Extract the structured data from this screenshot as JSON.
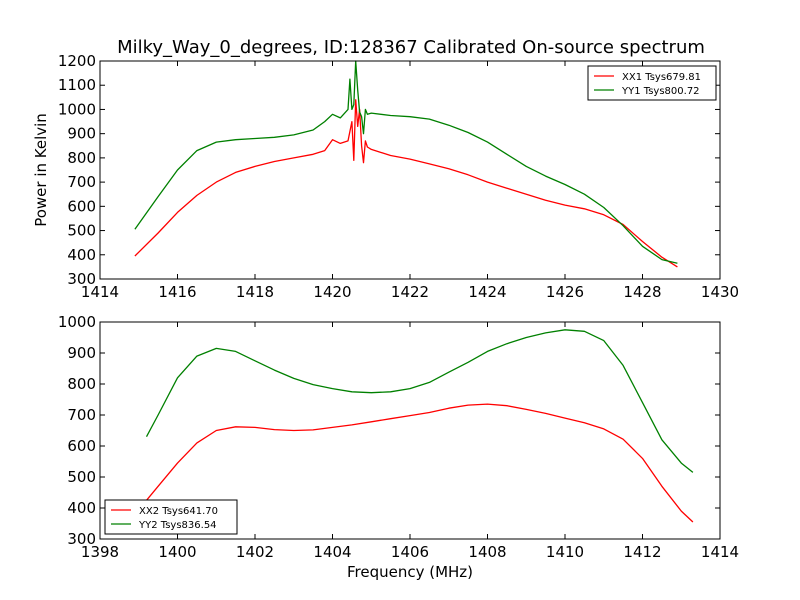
{
  "figure": {
    "title": "Milky_Way_0_degrees, ID:128367 Calibrated On-source spectrum"
  },
  "chart_data": [
    {
      "type": "line",
      "title": "Milky_Way_0_degrees, ID:128367 Calibrated On-source spectrum",
      "xlabel": "",
      "ylabel": "Power in Kelvin",
      "xlim": [
        1414,
        1430
      ],
      "ylim": [
        300,
        1200
      ],
      "xticks": [
        1414,
        1416,
        1418,
        1420,
        1422,
        1424,
        1426,
        1428,
        1430
      ],
      "yticks": [
        300,
        400,
        500,
        600,
        700,
        800,
        900,
        1000,
        1100,
        1200
      ],
      "grid": false,
      "legend": "top-right",
      "series": [
        {
          "name": "XX1 Tsys679.81",
          "color": "#ff0000",
          "x": [
            1414.9,
            1415.5,
            1416.0,
            1416.5,
            1417.0,
            1417.5,
            1418.0,
            1418.5,
            1419.0,
            1419.5,
            1419.8,
            1420.0,
            1420.2,
            1420.4,
            1420.5,
            1420.55,
            1420.6,
            1420.65,
            1420.7,
            1420.75,
            1420.8,
            1420.85,
            1420.9,
            1421.0,
            1421.5,
            1422.0,
            1422.5,
            1423.0,
            1423.5,
            1424.0,
            1424.5,
            1425.0,
            1425.5,
            1426.0,
            1426.5,
            1427.0,
            1427.5,
            1428.0,
            1428.5,
            1428.9
          ],
          "y": [
            395,
            490,
            575,
            645,
            700,
            740,
            765,
            785,
            800,
            815,
            830,
            875,
            860,
            870,
            950,
            790,
            1040,
            930,
            1000,
            850,
            780,
            870,
            845,
            835,
            810,
            795,
            775,
            755,
            730,
            700,
            675,
            650,
            625,
            605,
            590,
            565,
            525,
            455,
            390,
            350
          ]
        },
        {
          "name": "YY1 Tsys800.72",
          "color": "#008000",
          "x": [
            1414.9,
            1415.5,
            1416.0,
            1416.5,
            1417.0,
            1417.5,
            1418.0,
            1418.5,
            1419.0,
            1419.5,
            1419.8,
            1420.0,
            1420.2,
            1420.4,
            1420.45,
            1420.5,
            1420.55,
            1420.6,
            1420.65,
            1420.7,
            1420.75,
            1420.8,
            1420.85,
            1420.9,
            1421.0,
            1421.5,
            1422.0,
            1422.5,
            1423.0,
            1423.5,
            1424.0,
            1424.5,
            1425.0,
            1425.5,
            1426.0,
            1426.5,
            1427.0,
            1427.5,
            1428.0,
            1428.5,
            1428.9
          ],
          "y": [
            505,
            640,
            750,
            830,
            865,
            875,
            880,
            885,
            895,
            915,
            950,
            980,
            965,
            1000,
            1125,
            1000,
            1020,
            1200,
            1080,
            990,
            970,
            900,
            1000,
            980,
            985,
            975,
            970,
            960,
            935,
            905,
            865,
            815,
            765,
            725,
            690,
            650,
            595,
            520,
            435,
            380,
            365
          ]
        }
      ]
    },
    {
      "type": "line",
      "title": "",
      "xlabel": "Frequency (MHz)",
      "ylabel": "",
      "xlim": [
        1398,
        1414
      ],
      "ylim": [
        300,
        1000
      ],
      "xticks": [
        1398,
        1400,
        1402,
        1404,
        1406,
        1408,
        1410,
        1412,
        1414
      ],
      "yticks": [
        300,
        400,
        500,
        600,
        700,
        800,
        900,
        1000
      ],
      "grid": false,
      "legend": "bottom-left",
      "series": [
        {
          "name": "XX2 Tsys641.70",
          "color": "#ff0000",
          "x": [
            1399.2,
            1399.5,
            1400.0,
            1400.5,
            1401.0,
            1401.5,
            1402.0,
            1402.5,
            1403.0,
            1403.5,
            1404.0,
            1404.5,
            1405.0,
            1405.5,
            1406.0,
            1406.5,
            1407.0,
            1407.5,
            1408.0,
            1408.5,
            1409.0,
            1409.5,
            1410.0,
            1410.5,
            1411.0,
            1411.5,
            1412.0,
            1412.5,
            1413.0,
            1413.3
          ],
          "y": [
            425,
            470,
            545,
            610,
            650,
            662,
            660,
            653,
            650,
            652,
            660,
            668,
            678,
            688,
            698,
            708,
            722,
            732,
            735,
            730,
            718,
            705,
            690,
            675,
            655,
            622,
            560,
            470,
            390,
            355
          ]
        },
        {
          "name": "YY2 Tsys836.54",
          "color": "#008000",
          "x": [
            1399.2,
            1399.5,
            1400.0,
            1400.5,
            1401.0,
            1401.5,
            1402.0,
            1402.5,
            1403.0,
            1403.5,
            1404.0,
            1404.5,
            1405.0,
            1405.5,
            1406.0,
            1406.5,
            1407.0,
            1407.5,
            1408.0,
            1408.5,
            1409.0,
            1409.5,
            1410.0,
            1410.5,
            1411.0,
            1411.5,
            1412.0,
            1412.5,
            1413.0,
            1413.3
          ],
          "y": [
            630,
            700,
            820,
            890,
            915,
            905,
            875,
            845,
            818,
            798,
            785,
            775,
            772,
            775,
            785,
            805,
            838,
            870,
            905,
            930,
            950,
            965,
            975,
            970,
            940,
            860,
            740,
            620,
            545,
            515
          ]
        }
      ]
    }
  ]
}
